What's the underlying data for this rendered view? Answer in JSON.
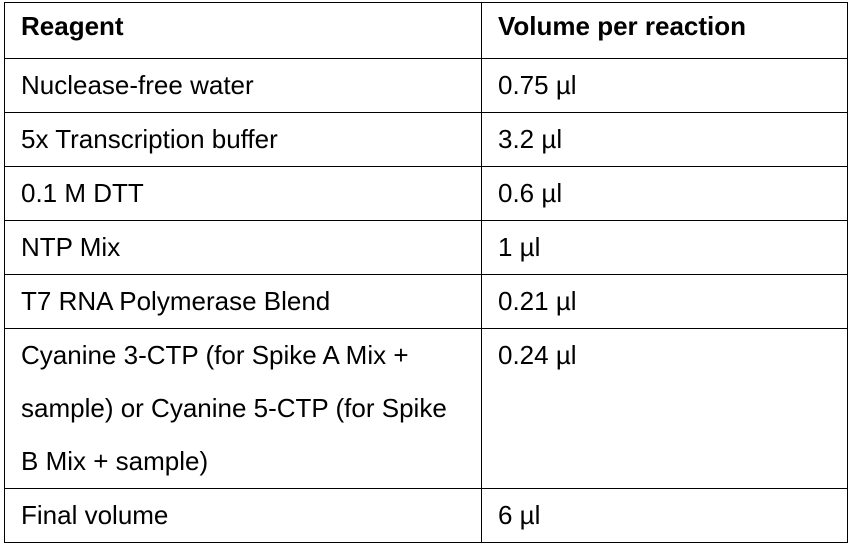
{
  "table": {
    "headers": [
      "Reagent",
      "Volume per reaction"
    ],
    "rows": [
      {
        "reagent": "Nuclease-free water",
        "volume": "0.75 µl"
      },
      {
        "reagent": "5x Transcription buffer",
        "volume": "3.2 µl"
      },
      {
        "reagent": "0.1 M DTT",
        "volume": "0.6 µl"
      },
      {
        "reagent": "NTP Mix",
        "volume": "1 µl"
      },
      {
        "reagent": "T7 RNA Polymerase Blend",
        "volume": "0.21 µl"
      },
      {
        "reagent": "Cyanine 3-CTP (for Spike A Mix + sample) or Cyanine 5-CTP (for Spike B Mix + sample)",
        "volume": "0.24 µl"
      },
      {
        "reagent": "Final volume",
        "volume": "6 µl"
      }
    ]
  }
}
